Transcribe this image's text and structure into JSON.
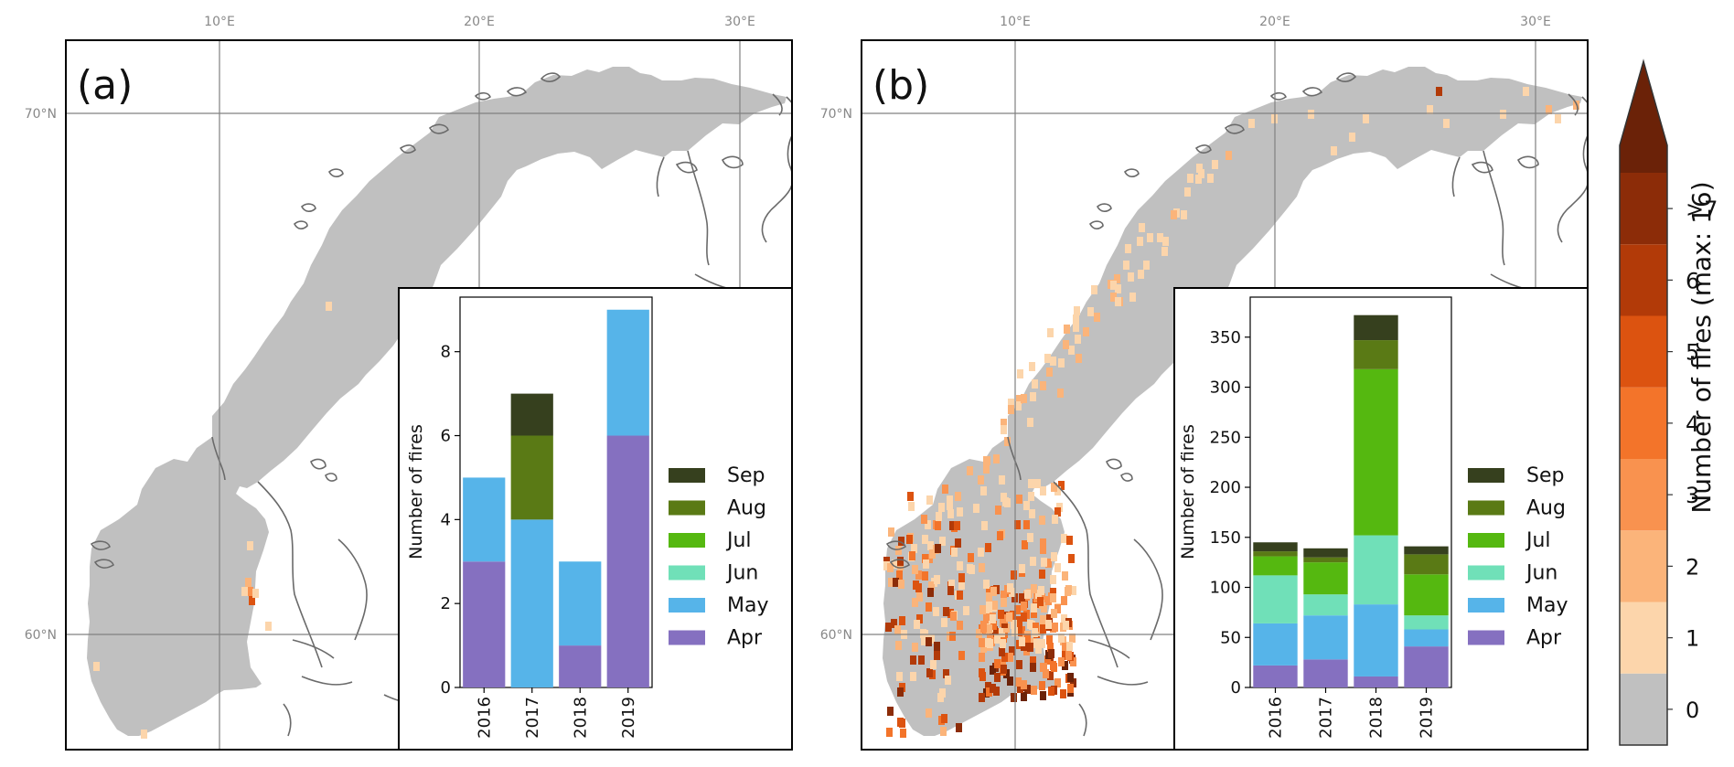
{
  "panels": [
    {
      "label": "(a)"
    },
    {
      "label": "(b)"
    }
  ],
  "map_axes": {
    "lon_ticks": [
      "10°E",
      "20°E",
      "30°E"
    ],
    "lat_ticks": [
      "70°N",
      "60°N"
    ]
  },
  "colorbar": {
    "label": "Number of fires (max: 16)",
    "tick_labels": [
      "0",
      "1",
      "2",
      "3",
      "4",
      "5",
      "6",
      ">7"
    ],
    "colors": [
      "#c0c0c0",
      "#fcd5ab",
      "#fbb47a",
      "#f9924f",
      "#f3742a",
      "#dc5310",
      "#b23a08",
      "#8c2c08",
      "#6b2208"
    ]
  },
  "chart_data": [
    {
      "type": "bar",
      "stacked": true,
      "panel": "(a)",
      "categories": [
        "2016",
        "2017",
        "2018",
        "2019"
      ],
      "ylabel": "Number of fires",
      "ylim": [
        0,
        9.3
      ],
      "yticks": [
        0,
        2,
        4,
        6,
        8
      ],
      "series": [
        {
          "name": "Apr",
          "color": "#8570c0",
          "values": [
            3,
            0,
            1,
            6
          ]
        },
        {
          "name": "May",
          "color": "#56b4e9",
          "values": [
            2,
            4,
            2,
            3
          ]
        },
        {
          "name": "Jun",
          "color": "#70e0b8",
          "values": [
            0,
            0,
            0,
            0
          ]
        },
        {
          "name": "Jul",
          "color": "#55b810",
          "values": [
            0,
            0,
            0,
            0
          ]
        },
        {
          "name": "Aug",
          "color": "#5a7a15",
          "values": [
            0,
            2,
            0,
            0
          ]
        },
        {
          "name": "Sep",
          "color": "#36401e",
          "values": [
            0,
            1,
            0,
            0
          ]
        }
      ],
      "legend_order": [
        "Sep",
        "Aug",
        "Jul",
        "Jun",
        "May",
        "Apr"
      ],
      "legend": "right"
    },
    {
      "type": "bar",
      "stacked": true,
      "panel": "(b)",
      "categories": [
        "2016",
        "2017",
        "2018",
        "2019"
      ],
      "ylabel": "Number of fires",
      "ylim": [
        0,
        390
      ],
      "yticks": [
        0,
        50,
        100,
        150,
        200,
        250,
        300,
        350
      ],
      "series": [
        {
          "name": "Apr",
          "color": "#8570c0",
          "values": [
            22,
            28,
            11,
            41
          ]
        },
        {
          "name": "May",
          "color": "#56b4e9",
          "values": [
            42,
            44,
            72,
            17
          ]
        },
        {
          "name": "Jun",
          "color": "#70e0b8",
          "values": [
            48,
            21,
            69,
            14
          ]
        },
        {
          "name": "Jul",
          "color": "#55b810",
          "values": [
            19,
            32,
            166,
            41
          ]
        },
        {
          "name": "Aug",
          "color": "#5a7a15",
          "values": [
            5,
            5,
            29,
            20
          ]
        },
        {
          "name": "Sep",
          "color": "#36401e",
          "values": [
            9,
            9,
            25,
            8
          ]
        }
      ],
      "legend_order": [
        "Sep",
        "Aug",
        "Jul",
        "Jun",
        "May",
        "Apr"
      ],
      "legend": "right"
    }
  ]
}
